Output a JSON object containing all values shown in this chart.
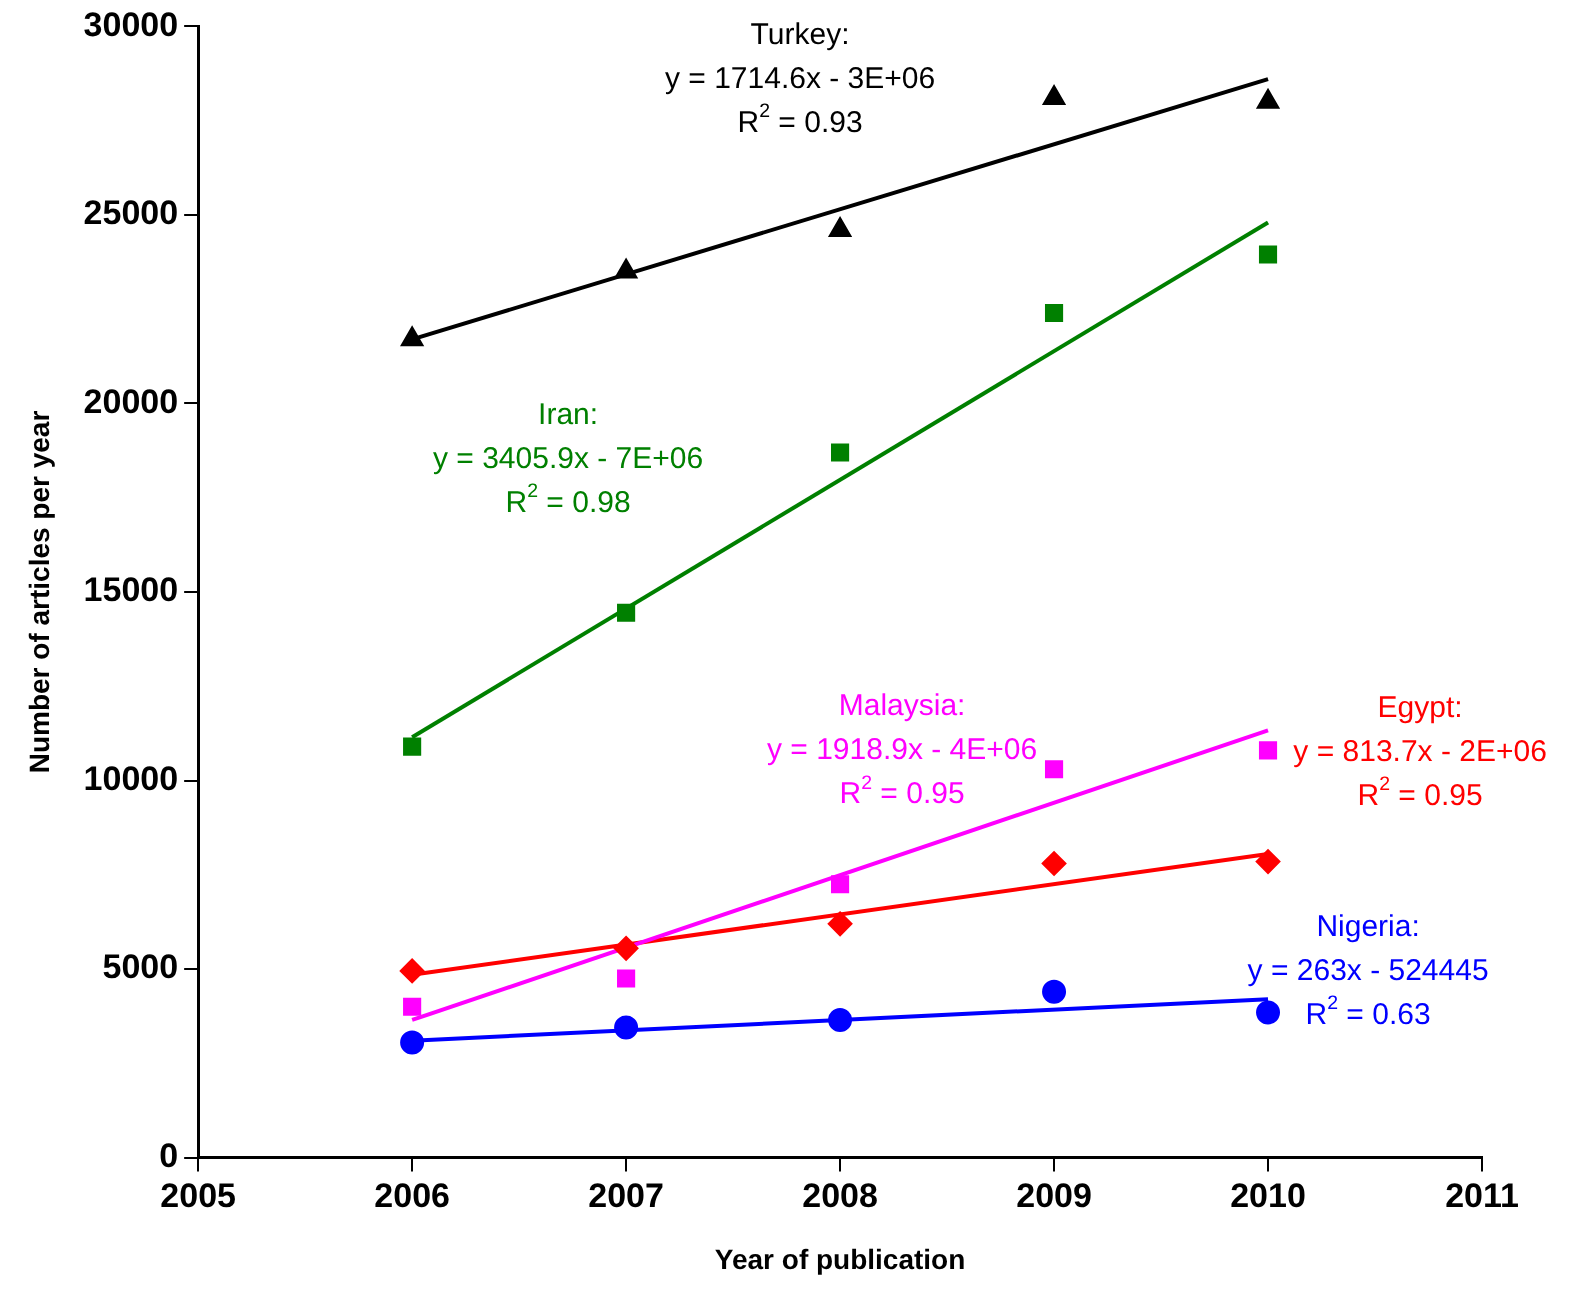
{
  "chart_data": {
    "type": "scatter",
    "xlabel": "Year of publication",
    "ylabel": "Number of articles per year",
    "x": [
      2006,
      2007,
      2008,
      2009,
      2010
    ],
    "series": [
      {
        "type": "scatter",
        "color": "#000000",
        "marker": "triangle",
        "values": [
          21700,
          23500,
          24600,
          28100,
          28000
        ]
      },
      {
        "type": "scatter",
        "color": "#008000",
        "marker": "square",
        "values": [
          10900,
          14450,
          18700,
          22400,
          23950
        ]
      },
      {
        "type": "scatter",
        "color": "#ff00ff",
        "marker": "square",
        "values": [
          4000,
          4750,
          7250,
          10300,
          10800
        ]
      },
      {
        "type": "scatter",
        "color": "#ff0000",
        "marker": "diamond",
        "values": [
          4950,
          5550,
          6200,
          7800,
          7850
        ]
      },
      {
        "type": "scatter",
        "color": "#0000ff",
        "marker": "circle",
        "values": [
          3050,
          3450,
          3650,
          4400,
          3850
        ]
      },
      {
        "type": "line",
        "name": "Turkey:\ny = 1714.6x - 3E+06\nR$^{2}$ = 0.93",
        "color": "#000000",
        "marker": "none",
        "values": [
          21700,
          null,
          null,
          null,
          28600
        ]
      },
      {
        "type": "line",
        "name": "Iran:\ny = 3405.9x - 7E+06\nR$^{2}$ = 0.98",
        "color": "#008000",
        "marker": "none",
        "values": [
          11150,
          null,
          null,
          null,
          24800
        ]
      },
      {
        "type": "line",
        "name": "Malaysia:\ny = 1918.9x - 4E+06\nR$^{2}$ = 0.95",
        "color": "#ff00ff",
        "marker": "none",
        "values": [
          3650,
          null,
          null,
          null,
          11330
        ]
      },
      {
        "type": "line",
        "name": "Egypt:\ny = 813.7x - 2E+06\nR$^{2}$ = 0.95",
        "color": "#ff0000",
        "marker": "none",
        "values": [
          4850,
          null,
          null,
          null,
          8050
        ]
      },
      {
        "type": "line",
        "name": "Nigeria:\ny = 263x - 524445\nR$^{2}$ = 0.63",
        "color": "#0000ff",
        "marker": "none",
        "values": [
          3100,
          null,
          null,
          null,
          4200
        ]
      }
    ],
    "xlim": [
      2005,
      2011
    ],
    "xticks": [
      2005,
      2006,
      2007,
      2008,
      2009,
      2010,
      2011
    ],
    "ylim": [
      0,
      30000
    ],
    "yticks": [
      0,
      5000,
      10000,
      15000,
      20000,
      25000,
      30000
    ],
    "grid": false,
    "legend": false
  }
}
